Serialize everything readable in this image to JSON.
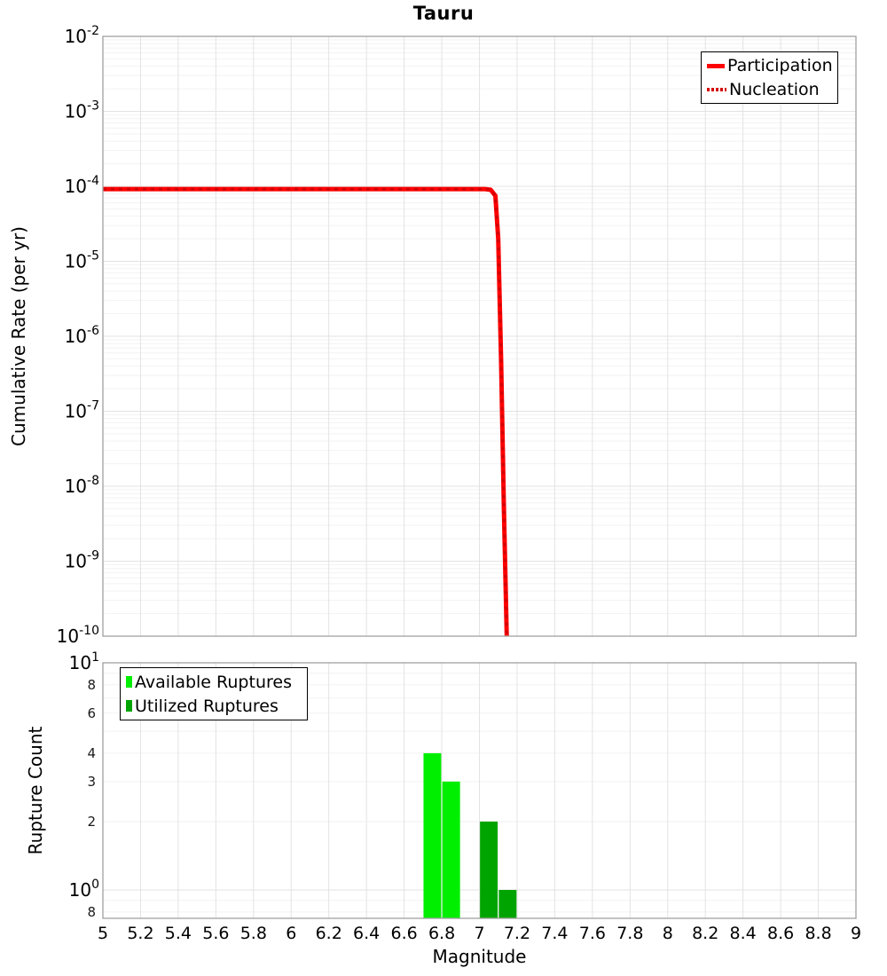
{
  "figure_title": "Tauru",
  "chart_data": [
    {
      "id": "cumulative-rate-chart",
      "type": "line",
      "title": "Tauru",
      "xlabel": "Magnitude",
      "ylabel": "Cumulative Rate (per yr)",
      "grid": true,
      "x_axis": {
        "min": 5,
        "max": 9,
        "tick_step": 0.2,
        "tick_labels": [
          "5",
          "5.2",
          "5.4",
          "5.6",
          "5.8",
          "6",
          "6.2",
          "6.4",
          "6.6",
          "6.8",
          "7",
          "7.2",
          "7.4",
          "7.6",
          "7.8",
          "8",
          "8.2",
          "8.4",
          "8.6",
          "8.8",
          "9"
        ],
        "labels_visible": false
      },
      "y_axis": {
        "scale": "log",
        "max_exp": -2,
        "min_exp": -10,
        "tick_exponents": [
          -2,
          -3,
          -4,
          -5,
          -6,
          -7,
          -8,
          -9,
          -10
        ]
      },
      "legend": {
        "position": "top-right",
        "items": [
          {
            "label": "Participation",
            "color": "#ff0000",
            "line_style": "solid"
          },
          {
            "label": "Nucleation",
            "color": "#d60000",
            "line_style": "dotted"
          }
        ]
      },
      "series": [
        {
          "name": "Participation",
          "color": "#ff0000",
          "line_style": "solid",
          "stroke_width": 5,
          "points": [
            [
              5.0,
              9.2e-05
            ],
            [
              7.03,
              9.2e-05
            ],
            [
              7.06,
              9e-05
            ],
            [
              7.085,
              7.5e-05
            ],
            [
              7.1,
              2e-05
            ],
            [
              7.115,
              5e-07
            ],
            [
              7.13,
              5e-09
            ],
            [
              7.145,
              1e-10
            ]
          ]
        },
        {
          "name": "Nucleation",
          "color": "#d60000",
          "line_style": "dotted",
          "stroke_width": 3.5,
          "points": [
            [
              5.0,
              9.2e-05
            ],
            [
              7.03,
              9.2e-05
            ],
            [
              7.06,
              9e-05
            ],
            [
              7.085,
              7.5e-05
            ],
            [
              7.1,
              2e-05
            ],
            [
              7.115,
              5e-07
            ],
            [
              7.13,
              5e-09
            ],
            [
              7.145,
              1e-10
            ]
          ]
        }
      ]
    },
    {
      "id": "rupture-count-chart",
      "type": "bar",
      "xlabel": "Magnitude",
      "ylabel": "Rupture Count",
      "grid": true,
      "x_axis": {
        "min": 5,
        "max": 9,
        "tick_step": 0.2,
        "tick_labels": [
          "5",
          "5.2",
          "5.4",
          "5.6",
          "5.8",
          "6",
          "6.2",
          "6.4",
          "6.6",
          "6.8",
          "7",
          "7.2",
          "7.4",
          "7.6",
          "7.8",
          "8",
          "8.2",
          "8.4",
          "8.6",
          "8.8",
          "9"
        ],
        "labels_visible": true
      },
      "y_axis": {
        "scale": "log",
        "min": 0.75,
        "max": 10,
        "major_ticks": [
          {
            "value": 10,
            "base": "10",
            "exp": "1"
          },
          {
            "value": 1,
            "base": "10",
            "exp": "0"
          }
        ],
        "minor_ticks": [
          {
            "value": 8,
            "label": "8"
          },
          {
            "value": 6,
            "label": "6"
          },
          {
            "value": 4,
            "label": "4"
          },
          {
            "value": 3,
            "label": "3"
          },
          {
            "value": 2,
            "label": "2"
          },
          {
            "value": 0.8,
            "label": "8"
          }
        ],
        "minor_gridlines": [
          9,
          8,
          7,
          6,
          5,
          4,
          3,
          2,
          0.9,
          0.8
        ]
      },
      "legend": {
        "position": "top-left",
        "items": [
          {
            "label": "Available Ruptures",
            "color": "#00ee00",
            "marker": "square"
          },
          {
            "label": "Utilized Ruptures",
            "color": "#00a400",
            "marker": "square"
          }
        ]
      },
      "bar_width_magnitude": 0.094,
      "series": [
        {
          "name": "Available Ruptures",
          "color": "#00ee00",
          "bars": [
            {
              "magnitude": 6.75,
              "count": 4
            },
            {
              "magnitude": 6.85,
              "count": 3
            }
          ]
        },
        {
          "name": "Utilized Ruptures",
          "color": "#00a400",
          "bars": [
            {
              "magnitude": 7.05,
              "count": 2
            },
            {
              "magnitude": 7.15,
              "count": 1
            }
          ]
        }
      ]
    }
  ]
}
